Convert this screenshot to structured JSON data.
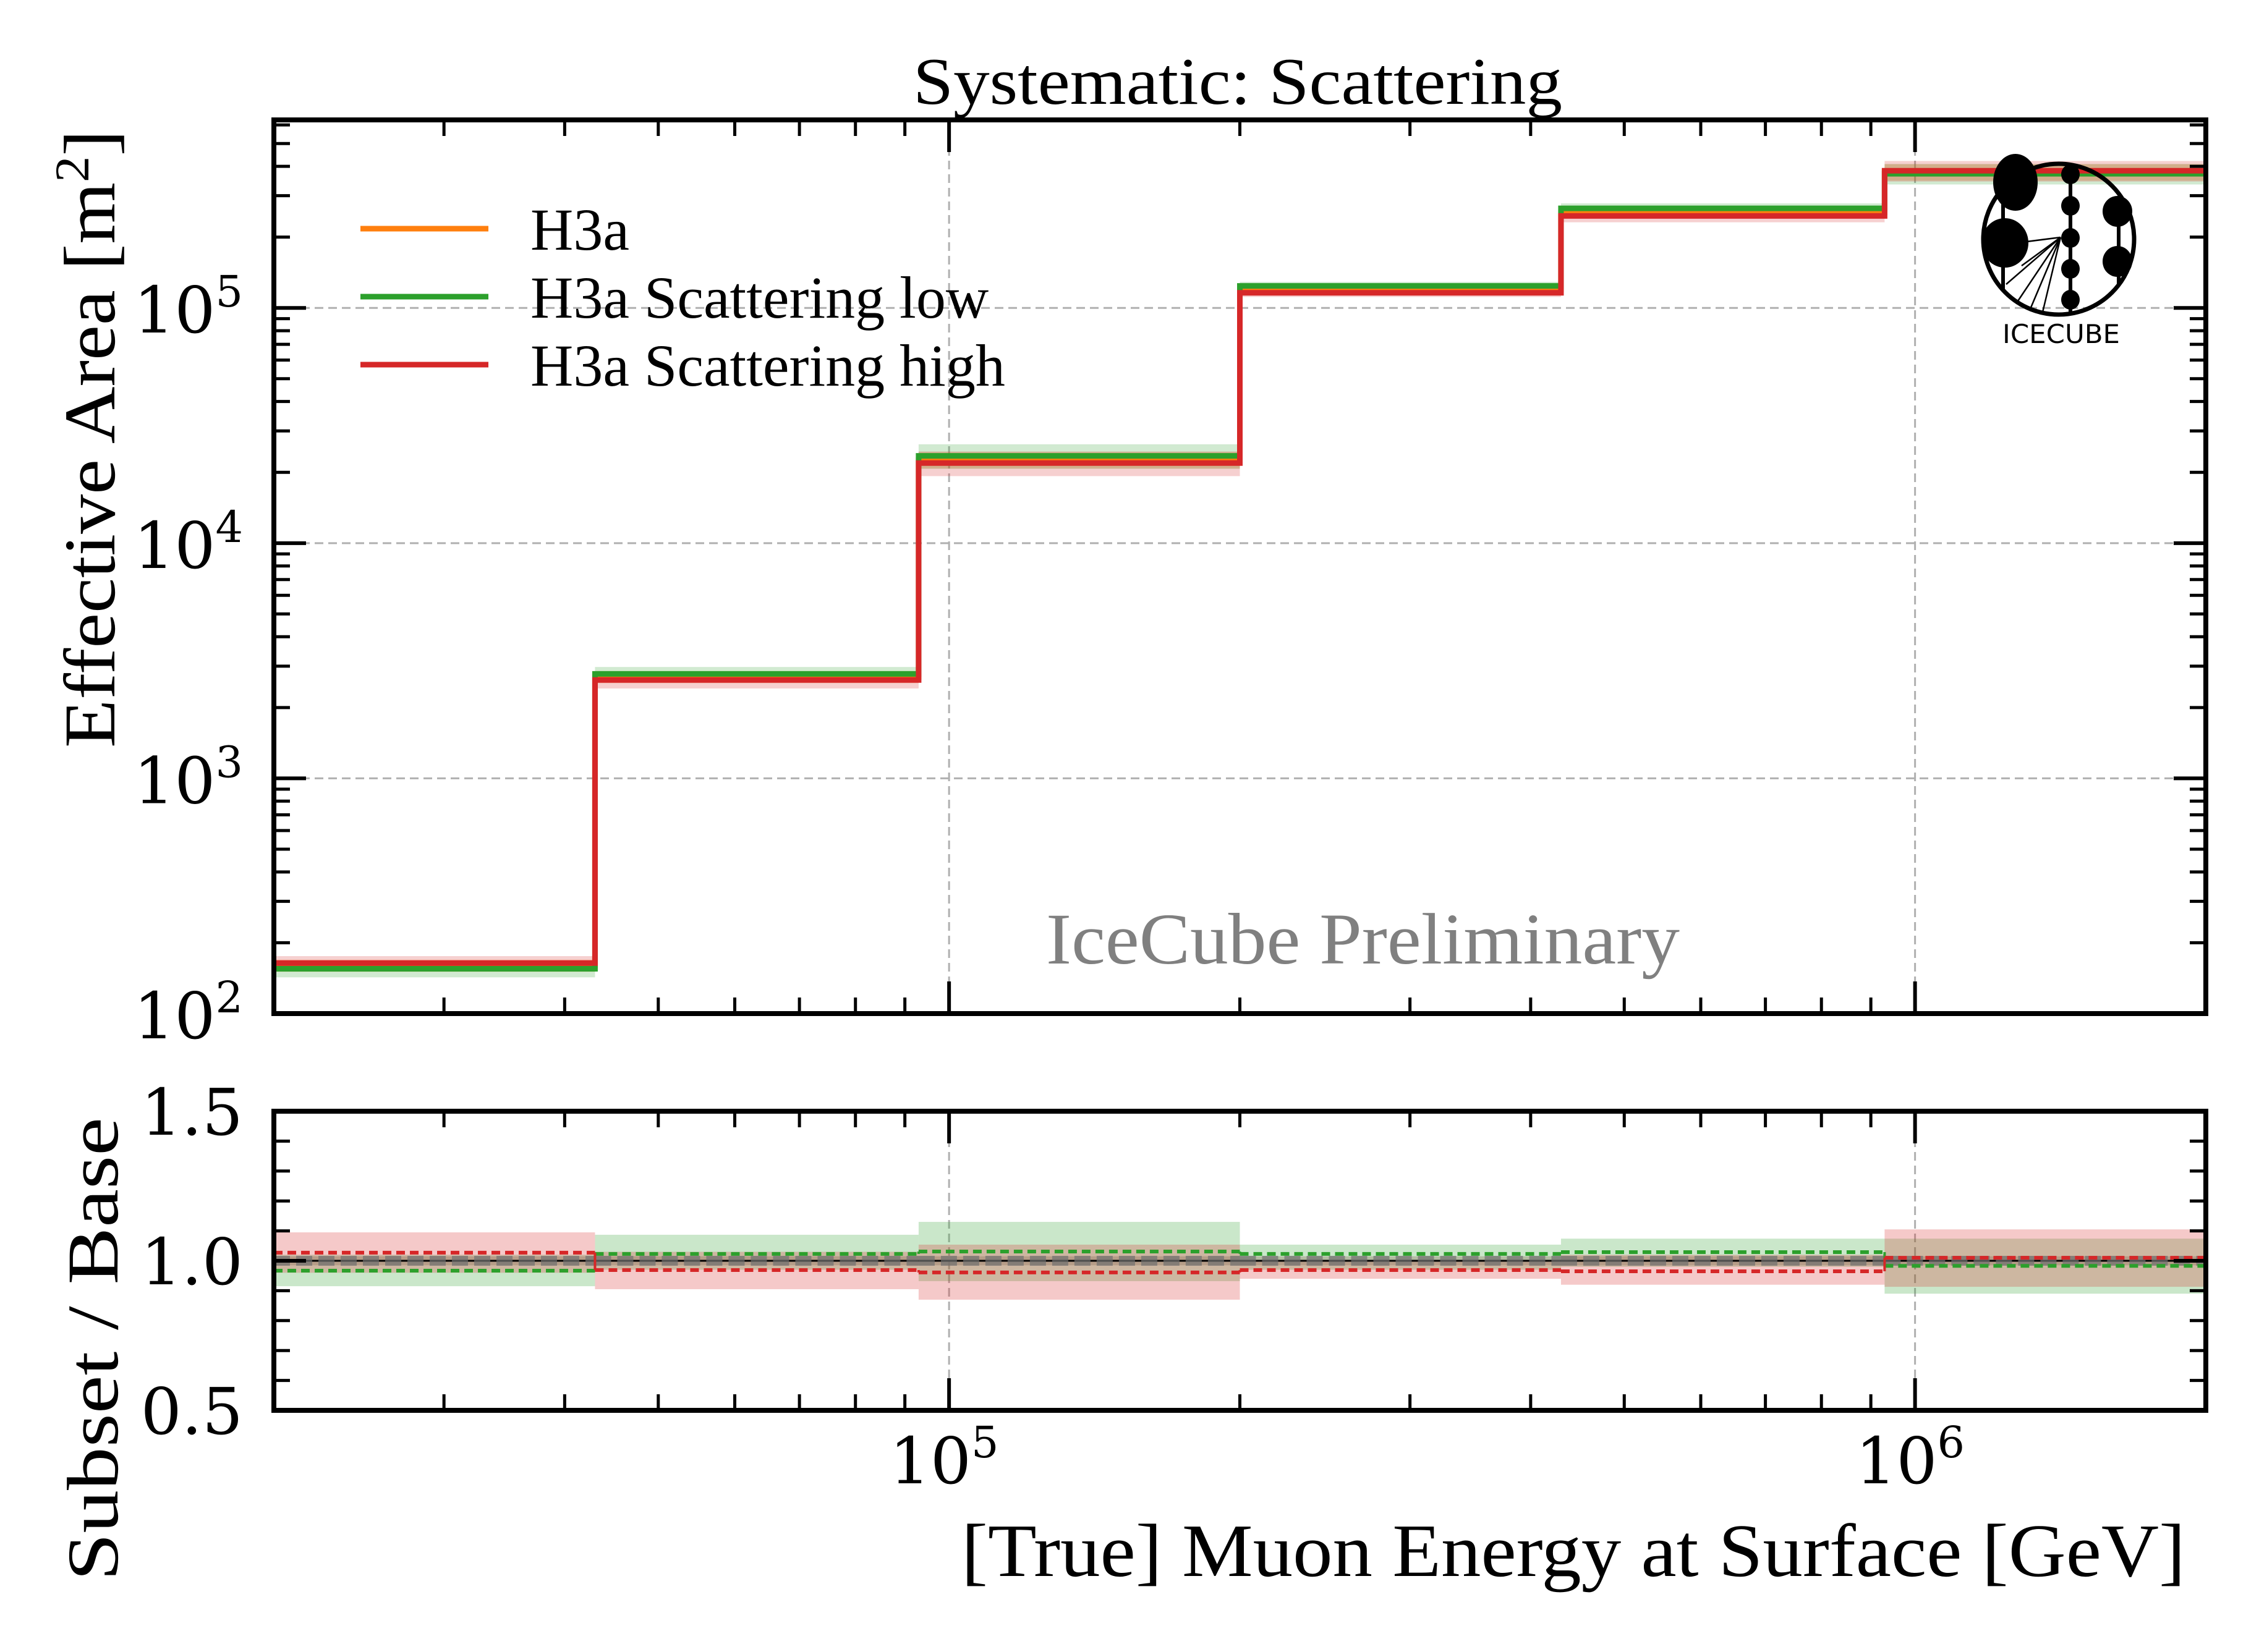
{
  "chart_data": {
    "type": "line",
    "style": "step-histogram-with-ratio-panel",
    "title": "Systematic: Scattering",
    "xlabel": "[True] Muon Energy at Surface [GeV]",
    "x_scale": "log",
    "xlim": [
      20000,
      2000000
    ],
    "x_major_ticks": [
      100000,
      1000000
    ],
    "x_tick_labels": [
      {
        "base": "10",
        "exp": "5"
      },
      {
        "base": "10",
        "exp": "6"
      }
    ],
    "bin_edges": [
      20000,
      43000,
      93000,
      200000,
      430000,
      930000,
      2000000
    ],
    "grid": true,
    "watermark": "IceCube Preliminary",
    "logo_text": "ICECUBE",
    "panels": [
      {
        "name": "effective-area",
        "ylabel": "Effective Area [m",
        "ylabel_sup": "2",
        "ylabel_tail": "]",
        "y_scale": "log",
        "ylim": [
          100,
          630000
        ],
        "y_tick_labels": [
          {
            "value": 100,
            "base": "10",
            "exp": "2"
          },
          {
            "value": 1000,
            "base": "10",
            "exp": "3"
          },
          {
            "value": 10000,
            "base": "10",
            "exp": "4"
          },
          {
            "value": 100000,
            "base": "10",
            "exp": "5"
          }
        ],
        "legend": {
          "placement": "top-left",
          "entries": [
            {
              "label": "H3a",
              "color": "#ff7f0e"
            },
            {
              "label": "H3a Scattering low",
              "color": "#2ca02c"
            },
            {
              "label": "H3a Scattering high",
              "color": "#d62728"
            }
          ]
        },
        "series": [
          {
            "name": "H3a",
            "color": "#ff7f0e",
            "values": [
              160,
              2700,
              22600,
              120000,
              255000,
              378000
            ],
            "band_rel": [
              0.06,
              0.06,
              0.08,
              0.04,
              0.04,
              0.08
            ]
          },
          {
            "name": "H3a Scattering low",
            "color": "#2ca02c",
            "values": [
              155,
              2780,
              23500,
              124000,
              265000,
              372000
            ],
            "band_rel": [
              0.08,
              0.07,
              0.12,
              0.04,
              0.05,
              0.1
            ]
          },
          {
            "name": "H3a Scattering high",
            "color": "#d62728",
            "values": [
              164,
              2620,
              21900,
              116000,
              246000,
              383000
            ],
            "band_rel": [
              0.07,
              0.08,
              0.12,
              0.04,
              0.06,
              0.1
            ]
          }
        ]
      },
      {
        "name": "ratio",
        "ylabel": "Subset / Base",
        "y_scale": "linear",
        "ylim": [
          0.5,
          1.5
        ],
        "y_ticks": [
          0.5,
          1.0,
          1.5
        ],
        "y_tick_labels": [
          "0.5",
          "1.0",
          "1.5"
        ],
        "y_minor_step": 0.1,
        "series": [
          {
            "name": "H3a",
            "color": "#7f7f7f",
            "values": [
              1.0,
              1.0,
              1.0,
              1.0,
              1.0,
              1.0
            ],
            "band": [
              [
                0.985,
                1.015
              ],
              [
                0.985,
                1.015
              ],
              [
                0.985,
                1.015
              ],
              [
                0.985,
                1.015
              ],
              [
                0.985,
                1.015
              ],
              [
                0.985,
                1.015
              ]
            ]
          },
          {
            "name": "H3a Scattering low",
            "color": "#2ca02c",
            "values": [
              0.967,
              1.023,
              1.031,
              1.023,
              1.029,
              0.983
            ],
            "band": [
              [
                0.915,
                1.02
              ],
              [
                0.97,
                1.087
              ],
              [
                0.932,
                1.13
              ],
              [
                0.97,
                1.054
              ],
              [
                0.98,
                1.074
              ],
              [
                0.89,
                1.074
              ]
            ]
          },
          {
            "name": "H3a Scattering high",
            "color": "#d62728",
            "values": [
              1.027,
              0.969,
              0.961,
              0.969,
              0.965,
              1.01
            ],
            "band": [
              [
                0.96,
                1.095
              ],
              [
                0.905,
                1.03
              ],
              [
                0.87,
                1.054
              ],
              [
                0.94,
                1.0
              ],
              [
                0.92,
                1.02
              ],
              [
                0.913,
                1.105
              ]
            ]
          }
        ]
      }
    ]
  }
}
